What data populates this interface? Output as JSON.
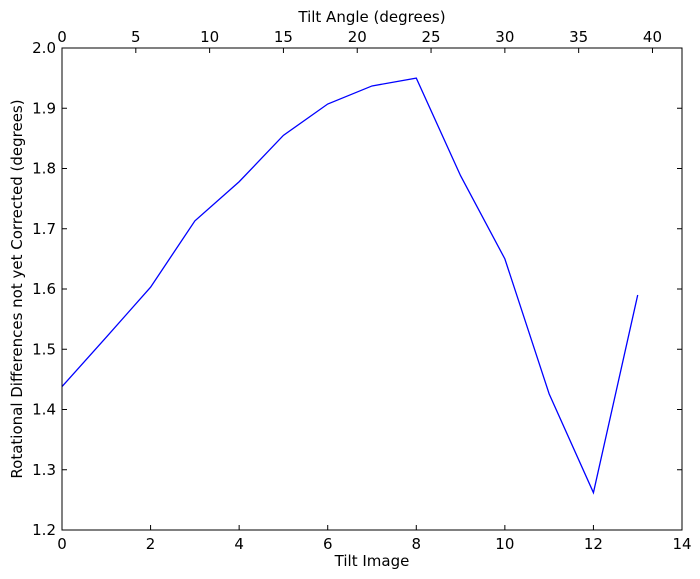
{
  "chart_data": {
    "type": "line",
    "xlabel": "Tilt Image",
    "ylabel": "Rotational Differences not yet Corrected (degrees)",
    "top_xlabel": "Tilt Angle (degrees)",
    "xlim": [
      0,
      14
    ],
    "ylim": [
      1.2,
      2.0
    ],
    "top_xlim": [
      0,
      42
    ],
    "x_ticks": [
      0,
      2,
      4,
      6,
      8,
      10,
      12,
      14
    ],
    "y_ticks": [
      "1.2",
      "1.3",
      "1.4",
      "1.5",
      "1.6",
      "1.7",
      "1.8",
      "1.9",
      "2.0"
    ],
    "top_x_ticks": [
      0,
      5,
      10,
      15,
      20,
      25,
      30,
      35,
      40
    ],
    "grid": false,
    "series": [
      {
        "color": "#0000ff",
        "x": [
          0,
          1,
          2,
          3,
          4,
          5,
          6,
          7,
          8,
          9,
          10,
          11,
          12,
          13
        ],
        "y": [
          1.438,
          1.52,
          1.603,
          1.713,
          1.778,
          1.855,
          1.907,
          1.937,
          1.95,
          1.788,
          1.65,
          1.426,
          1.262,
          1.59
        ]
      }
    ]
  }
}
